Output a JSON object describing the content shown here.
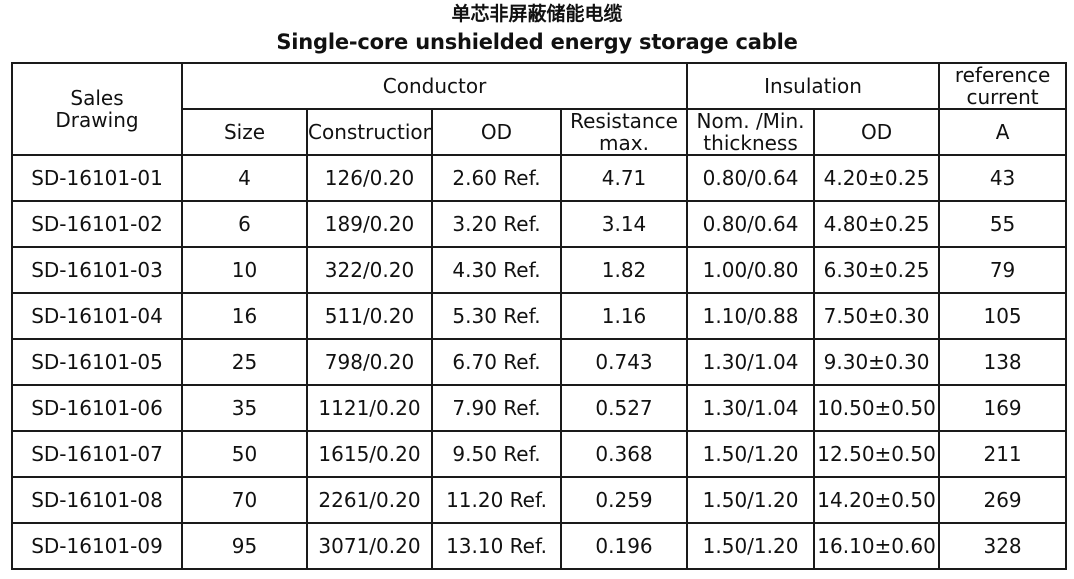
{
  "title_zh": "单芯非屏蔽储能电缆",
  "title_en": "Single-core unshielded energy storage cable",
  "headers": {
    "sales_drawing_line1": "Sales",
    "sales_drawing_line2": "Drawing",
    "conductor": "Conductor",
    "insulation": "Insulation",
    "reference_current_line1": "reference",
    "reference_current_line2": "current",
    "size": "Size",
    "construction": "Construction",
    "conductor_od": "OD",
    "resistance_line1": "Resistance",
    "resistance_line2": "max.",
    "thickness_line1": "Nom. /Min.",
    "thickness_line2": "thickness",
    "insulation_od": "OD",
    "current_unit": "A"
  },
  "rows": [
    {
      "drawing": "SD-16101-01",
      "size": "4",
      "construction": "126/0.20",
      "conductor_od": "2.60 Ref.",
      "resistance": "4.71",
      "thickness": "0.80/0.64",
      "insulation_od": "4.20±0.25",
      "current": "43"
    },
    {
      "drawing": "SD-16101-02",
      "size": "6",
      "construction": "189/0.20",
      "conductor_od": "3.20 Ref.",
      "resistance": "3.14",
      "thickness": "0.80/0.64",
      "insulation_od": "4.80±0.25",
      "current": "55"
    },
    {
      "drawing": "SD-16101-03",
      "size": "10",
      "construction": "322/0.20",
      "conductor_od": "4.30 Ref.",
      "resistance": "1.82",
      "thickness": "1.00/0.80",
      "insulation_od": "6.30±0.25",
      "current": "79"
    },
    {
      "drawing": "SD-16101-04",
      "size": "16",
      "construction": "511/0.20",
      "conductor_od": "5.30 Ref.",
      "resistance": "1.16",
      "thickness": "1.10/0.88",
      "insulation_od": "7.50±0.30",
      "current": "105"
    },
    {
      "drawing": "SD-16101-05",
      "size": "25",
      "construction": "798/0.20",
      "conductor_od": "6.70 Ref.",
      "resistance": "0.743",
      "thickness": "1.30/1.04",
      "insulation_od": "9.30±0.30",
      "current": "138"
    },
    {
      "drawing": "SD-16101-06",
      "size": "35",
      "construction": "1121/0.20",
      "conductor_od": "7.90 Ref.",
      "resistance": "0.527",
      "thickness": "1.30/1.04",
      "insulation_od": "10.50±0.50",
      "current": "169"
    },
    {
      "drawing": "SD-16101-07",
      "size": "50",
      "construction": "1615/0.20",
      "conductor_od": "9.50 Ref.",
      "resistance": "0.368",
      "thickness": "1.50/1.20",
      "insulation_od": "12.50±0.50",
      "current": "211"
    },
    {
      "drawing": "SD-16101-08",
      "size": "70",
      "construction": "2261/0.20",
      "conductor_od": "11.20 Ref.",
      "resistance": "0.259",
      "thickness": "1.50/1.20",
      "insulation_od": "14.20±0.50",
      "current": "269"
    },
    {
      "drawing": "SD-16101-09",
      "size": "95",
      "construction": "3071/0.20",
      "conductor_od": "13.10 Ref.",
      "resistance": "0.196",
      "thickness": "1.50/1.20",
      "insulation_od": "16.10±0.60",
      "current": "328"
    }
  ]
}
